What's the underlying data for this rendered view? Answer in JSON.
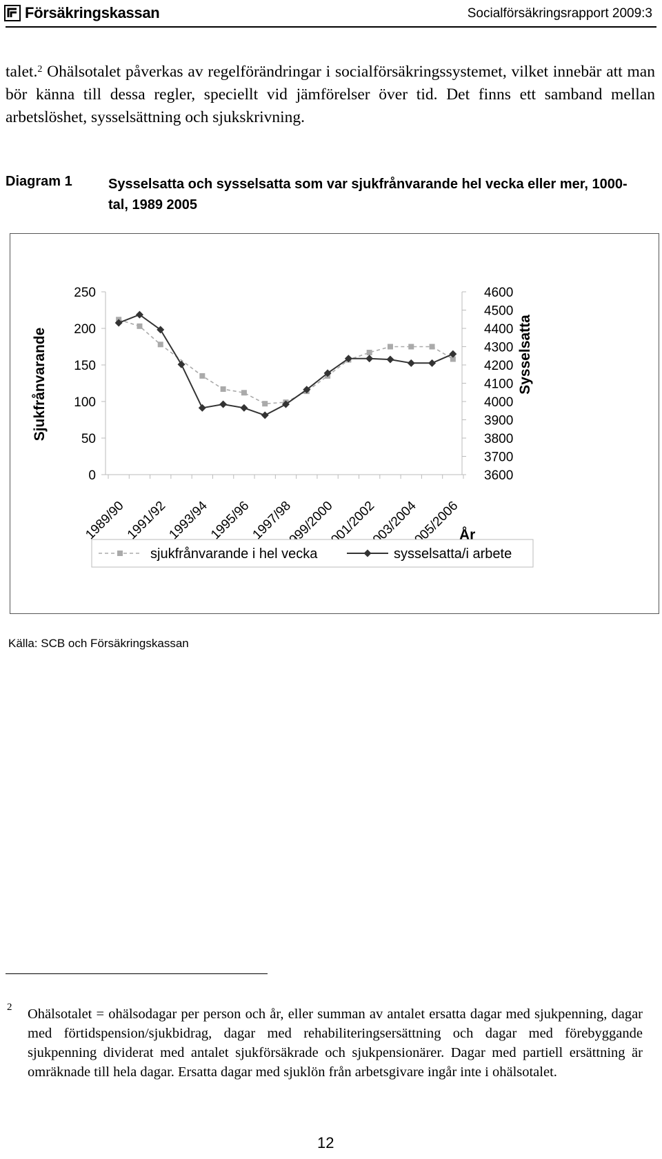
{
  "header": {
    "logo_text": "Försäkringskassan",
    "report": "Socialförsäkringsrapport 2009:3"
  },
  "body": {
    "p1_start": "talet.",
    "p1_sup": "2",
    "p1_rest": " Ohälsotalet påverkas av regelförändringar i socialförsäkringssystemet, vilket innebär att man bör känna till dessa regler, speciellt vid jämförelser över tid. Det finns ett samband mellan arbetslöshet, sysselsättning och sjukskrivning."
  },
  "diagram": {
    "label": "Diagram 1",
    "title": "Sysselsatta och sysselsatta som var sjukfrånvarande hel vecka eller mer, 1000-tal, 1989 2005"
  },
  "chart_data": {
    "type": "line",
    "x": [
      "1989",
      "1990",
      "1991",
      "1992",
      "1993",
      "1994",
      "1995",
      "1996",
      "1997",
      "1998",
      "1999",
      "2000",
      "2001",
      "2002",
      "2003",
      "2004",
      "2005"
    ],
    "tick_labels": [
      "1989/90",
      "1991/92",
      "1993/94",
      "1995/96",
      "1997/98",
      "1999/2000",
      "2001/2002",
      "2003/2004",
      "2005/2006"
    ],
    "xlabel": "År",
    "ylabel_left": "Sjukfrånvarande",
    "ylabel_right": "Sysselsatta",
    "ylim_left": [
      0,
      250
    ],
    "yticks_left": [
      0,
      50,
      100,
      150,
      200,
      250
    ],
    "ylim_right": [
      3600,
      4600
    ],
    "yticks_right": [
      3600,
      3700,
      3800,
      3900,
      4000,
      4100,
      4200,
      4300,
      4400,
      4500,
      4600
    ],
    "series": [
      {
        "name": "sjukfrånvarande i hel vecka",
        "axis": "left",
        "color": "#aaaaaa",
        "style": "dashed",
        "marker": "square",
        "values": [
          212,
          203,
          178,
          null,
          135,
          117,
          112,
          97,
          99,
          114,
          135,
          157,
          167,
          175,
          175,
          175,
          158
        ]
      },
      {
        "name": "sysselsatta/i arbete",
        "axis": "right",
        "color": "#333333",
        "style": "solid",
        "marker": "diamond",
        "values": [
          4430,
          4475,
          4393,
          4203,
          3965,
          3985,
          3965,
          3925,
          3985,
          4065,
          4155,
          4235,
          4235,
          4230,
          4210,
          4210,
          4260
        ]
      }
    ],
    "legend_position": "bottom",
    "grid": false
  },
  "source": "Källa: SCB och Försäkringskassan",
  "footnote": {
    "mark": "2",
    "text": "Ohälsotalet = ohälsodagar per person och år, eller summan av antalet ersatta dagar med sjukpenning, dagar med förtidspension/sjukbidrag, dagar med rehabiliteringsersättning och dagar med förebyggande sjukpenning dividerat med antalet sjukförsäkrade och sjukpensionärer. Dagar med partiell ersättning är omräknade till hela dagar. Ersatta dagar med sjuklön från arbetsgivare ingår inte i ohälsotalet."
  },
  "page_number": "12"
}
